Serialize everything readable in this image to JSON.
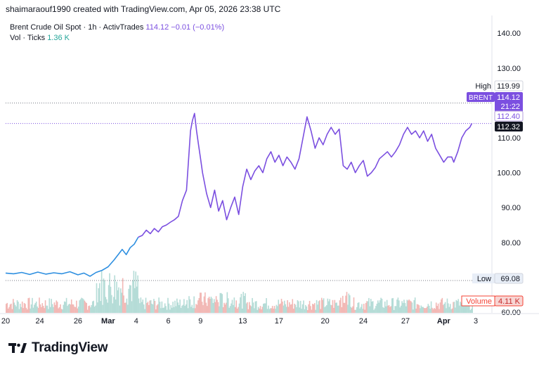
{
  "caption": "shaimaraouf1990 created with TradingView.com, Apr 05, 2026 23:38 UTC",
  "legend": {
    "symbol": "Brent Crude Oil Spot · 1h · ActivTrades",
    "price": "114.12",
    "change": "−0.01 (−0.01%)",
    "vol_label": "Vol · Ticks",
    "vol_value": "1.36 K"
  },
  "brand": "TradingView",
  "colors": {
    "line_early": "#2e8fe0",
    "line_late": "#7b4fe0",
    "vol_up": "#b5dcd7",
    "vol_down": "#f2b8b5",
    "accent": "#7b4fe0"
  },
  "chart_data": {
    "type": "line",
    "title": "Brent Crude Oil Spot · 1h · ActivTrades",
    "ylim": [
      60,
      145
    ],
    "y_ticks": [
      "140.00",
      "130.00",
      "120.00",
      "110.00",
      "100.00",
      "90.00",
      "80.00",
      "70.00",
      "60.00"
    ],
    "y_tick_values": [
      140,
      130,
      120,
      110,
      100,
      90,
      80,
      70,
      60
    ],
    "x_ticks": [
      "20",
      "24",
      "26",
      "Mar",
      "4",
      "6",
      "9",
      "13",
      "17",
      "20",
      "24",
      "27",
      "Apr",
      "3"
    ],
    "x_tick_index": [
      0,
      17,
      36,
      51,
      65,
      81,
      97,
      118,
      136,
      159,
      178,
      199,
      218,
      234
    ],
    "index_range": [
      0,
      242
    ],
    "series": [
      {
        "name": "Brent Crude Oil Spot",
        "color_split_index": 66,
        "points": [
          [
            0,
            71.2
          ],
          [
            4,
            71.0
          ],
          [
            8,
            71.4
          ],
          [
            12,
            70.8
          ],
          [
            16,
            71.5
          ],
          [
            20,
            70.9
          ],
          [
            24,
            71.3
          ],
          [
            28,
            71.0
          ],
          [
            32,
            71.6
          ],
          [
            36,
            70.7
          ],
          [
            39,
            71.2
          ],
          [
            42,
            70.3
          ],
          [
            45,
            71.4
          ],
          [
            48,
            72.0
          ],
          [
            51,
            73.0
          ],
          [
            54,
            75.0
          ],
          [
            56,
            76.5
          ],
          [
            58,
            78.0
          ],
          [
            60,
            76.5
          ],
          [
            62,
            78.5
          ],
          [
            64,
            79.5
          ],
          [
            66,
            81.5
          ],
          [
            68,
            82.0
          ],
          [
            70,
            83.5
          ],
          [
            72,
            82.5
          ],
          [
            74,
            84.0
          ],
          [
            76,
            83.0
          ],
          [
            78,
            84.5
          ],
          [
            80,
            85.0
          ],
          [
            82,
            85.8
          ],
          [
            84,
            86.5
          ],
          [
            86,
            87.5
          ],
          [
            88,
            92.0
          ],
          [
            90,
            95.0
          ],
          [
            92,
            112.0
          ],
          [
            93,
            115.0
          ],
          [
            94,
            117.0
          ],
          [
            95,
            112.0
          ],
          [
            96,
            108.0
          ],
          [
            97,
            104.0
          ],
          [
            98,
            100.0
          ],
          [
            100,
            94.0
          ],
          [
            102,
            90.0
          ],
          [
            104,
            95.0
          ],
          [
            106,
            89.0
          ],
          [
            108,
            92.0
          ],
          [
            110,
            86.5
          ],
          [
            112,
            90.0
          ],
          [
            114,
            93.0
          ],
          [
            116,
            88.0
          ],
          [
            118,
            96.0
          ],
          [
            120,
            101.0
          ],
          [
            122,
            98.0
          ],
          [
            124,
            100.5
          ],
          [
            126,
            102.0
          ],
          [
            128,
            100.0
          ],
          [
            130,
            104.0
          ],
          [
            132,
            106.0
          ],
          [
            134,
            103.0
          ],
          [
            136,
            105.0
          ],
          [
            138,
            102.0
          ],
          [
            140,
            104.5
          ],
          [
            142,
            103.0
          ],
          [
            144,
            101.0
          ],
          [
            146,
            104.0
          ],
          [
            148,
            110.0
          ],
          [
            150,
            116.0
          ],
          [
            152,
            112.0
          ],
          [
            154,
            107.0
          ],
          [
            156,
            110.0
          ],
          [
            158,
            108.0
          ],
          [
            160,
            111.0
          ],
          [
            162,
            113.0
          ],
          [
            164,
            111.0
          ],
          [
            166,
            112.5
          ],
          [
            168,
            102.0
          ],
          [
            170,
            101.0
          ],
          [
            172,
            103.0
          ],
          [
            174,
            100.0
          ],
          [
            176,
            102.0
          ],
          [
            178,
            103.5
          ],
          [
            180,
            99.0
          ],
          [
            182,
            100.0
          ],
          [
            184,
            101.5
          ],
          [
            186,
            104.0
          ],
          [
            188,
            105.0
          ],
          [
            190,
            106.0
          ],
          [
            192,
            104.5
          ],
          [
            194,
            106.0
          ],
          [
            196,
            108.0
          ],
          [
            198,
            111.0
          ],
          [
            200,
            113.0
          ],
          [
            202,
            111.0
          ],
          [
            204,
            112.0
          ],
          [
            206,
            110.0
          ],
          [
            208,
            112.0
          ],
          [
            210,
            109.0
          ],
          [
            212,
            111.0
          ],
          [
            214,
            107.0
          ],
          [
            216,
            105.0
          ],
          [
            218,
            103.0
          ],
          [
            220,
            104.5
          ],
          [
            222,
            104.5
          ],
          [
            223,
            103.0
          ],
          [
            225,
            106.0
          ],
          [
            227,
            110.0
          ],
          [
            229,
            112.0
          ],
          [
            231,
            113.0
          ],
          [
            232,
            114.12
          ]
        ]
      }
    ],
    "volume": {
      "seed_note": "approximate tick volume bars",
      "max": 6000,
      "last_label": "4.11 K"
    },
    "markers": {
      "high_label": "High",
      "high_value": "119.99",
      "high_y": 119.99,
      "low_label": "Low",
      "low_value": "69.08",
      "low_y": 69.08,
      "symbol_tag": "BRENT",
      "last_value": "114.12",
      "countdown": "21:22",
      "last_y": 114.12,
      "mid_value": "112.40",
      "mid_y": 112.4,
      "close_value": "112.32",
      "close_y": 112.32,
      "volume_label": "Volume",
      "volume_value": "4.11 K"
    }
  }
}
